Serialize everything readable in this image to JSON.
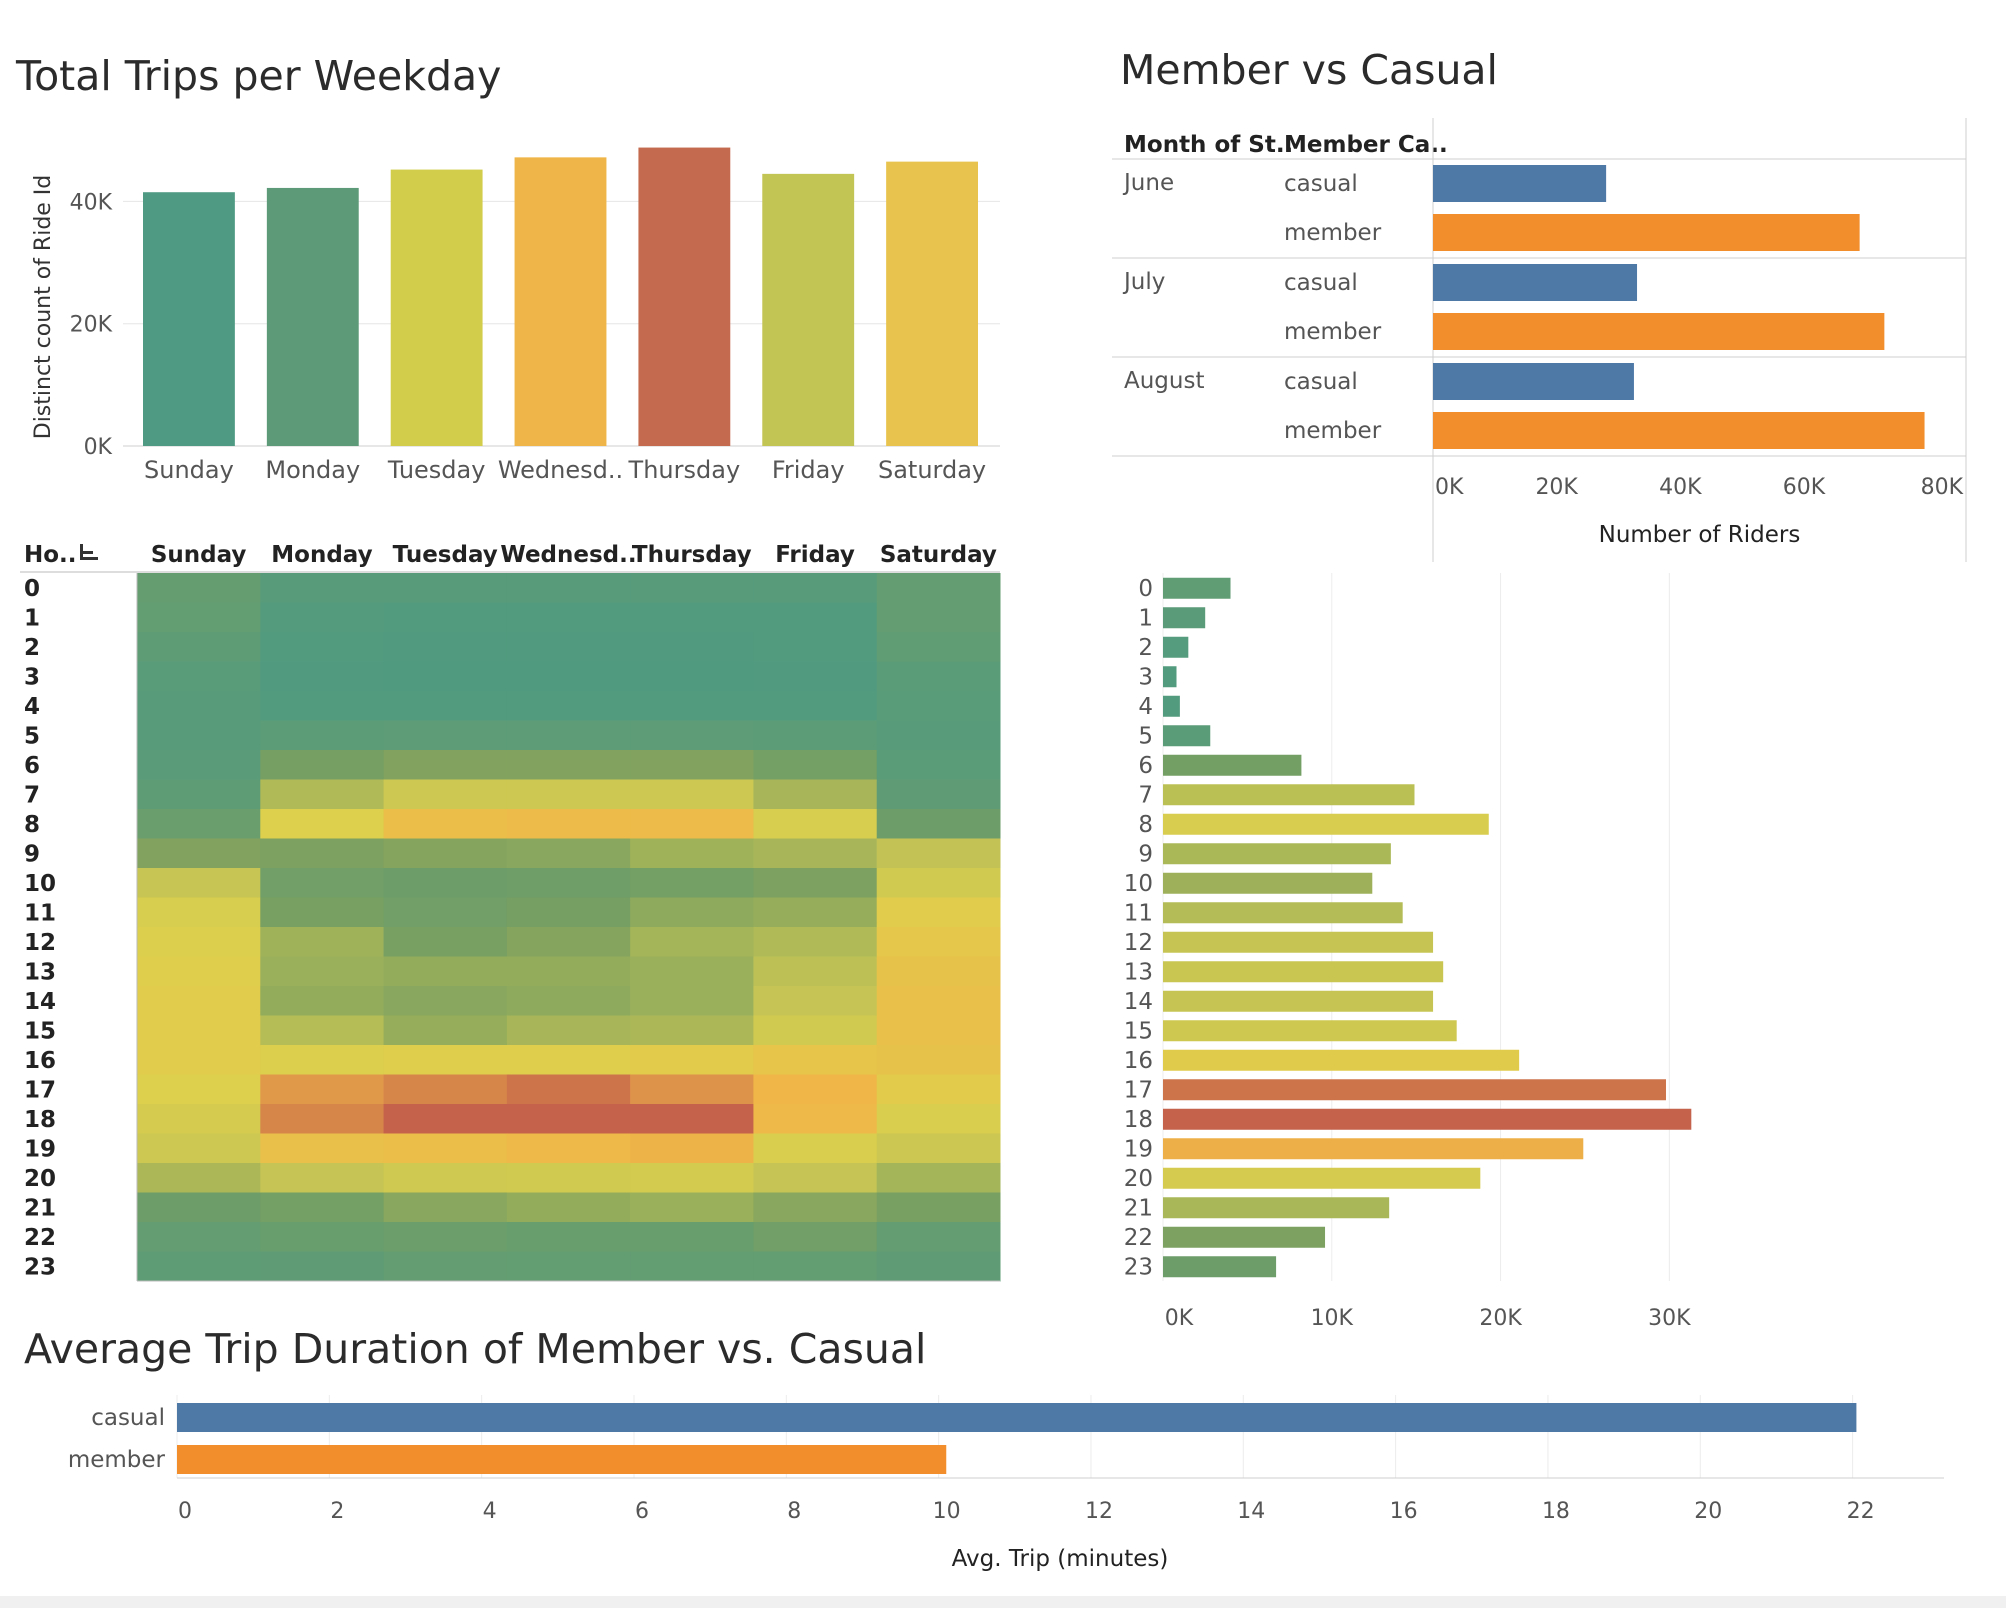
{
  "chart_data": [
    {
      "id": "weekday",
      "type": "bar",
      "title": "Total Trips per Weekday",
      "ylabel": "Distinct count of Ride Id",
      "categories": [
        "Sunday",
        "Monday",
        "Tuesday",
        "Wednesd..",
        "Thursday",
        "Friday",
        "Saturday"
      ],
      "values": [
        41500,
        42200,
        45200,
        47200,
        48800,
        44500,
        46500
      ],
      "colors": [
        "#4e9a82",
        "#5c9a78",
        "#d2cd4a",
        "#f0b548",
        "#c46a4e",
        "#c2c454",
        "#e8c44e"
      ],
      "yticks": [
        0,
        20000,
        40000
      ],
      "ytick_labels": [
        "0K",
        "20K",
        "40K"
      ],
      "ylim": [
        0,
        52000
      ],
      "grid": true
    },
    {
      "id": "member_casual_month",
      "type": "bar",
      "orientation": "horizontal",
      "title": "Member vs Casual",
      "headers": [
        "Month of St..",
        "Member Ca.."
      ],
      "xlabel": "Number of Riders",
      "groups": [
        {
          "month": "June",
          "rows": [
            {
              "type": "casual",
              "value": 28000
            },
            {
              "type": "member",
              "value": 69000
            }
          ]
        },
        {
          "month": "July",
          "rows": [
            {
              "type": "casual",
              "value": 33000
            },
            {
              "type": "member",
              "value": 73000
            }
          ]
        },
        {
          "month": "August",
          "rows": [
            {
              "type": "casual",
              "value": 32500
            },
            {
              "type": "member",
              "value": 79500
            }
          ]
        }
      ],
      "colors": {
        "casual": "#4e79a7",
        "member": "#f28e2b"
      },
      "xticks": [
        0,
        20000,
        40000,
        60000,
        80000
      ],
      "xtick_labels": [
        "0K",
        "20K",
        "40K",
        "60K",
        "80K"
      ],
      "xlim": [
        0,
        82000
      ]
    },
    {
      "id": "heatmap",
      "type": "heatmap",
      "row_header": "Ho..",
      "columns": [
        "Sunday",
        "Monday",
        "Tuesday",
        "Wednesd..",
        "Thursday",
        "Friday",
        "Saturday"
      ],
      "rows": [
        "0",
        "1",
        "2",
        "3",
        "4",
        "5",
        "6",
        "7",
        "8",
        "9",
        "10",
        "11",
        "12",
        "13",
        "14",
        "15",
        "16",
        "17",
        "18",
        "19",
        "20",
        "21",
        "22",
        "23"
      ],
      "values": [
        [
          680,
          300,
          250,
          250,
          250,
          250,
          650
        ],
        [
          600,
          180,
          150,
          150,
          150,
          150,
          620
        ],
        [
          450,
          120,
          100,
          100,
          100,
          110,
          520
        ],
        [
          330,
          80,
          70,
          70,
          70,
          80,
          380
        ],
        [
          280,
          130,
          120,
          120,
          120,
          130,
          320
        ],
        [
          300,
          420,
          430,
          430,
          430,
          420,
          300
        ],
        [
          350,
          1150,
          1350,
          1350,
          1350,
          1100,
          380
        ],
        [
          450,
          1900,
          2350,
          2350,
          2350,
          1800,
          500
        ],
        [
          800,
          2750,
          3150,
          3200,
          3200,
          2600,
          900
        ],
        [
          1350,
          1300,
          1400,
          1450,
          1700,
          1800,
          2100
        ],
        [
          2200,
          1000,
          900,
          950,
          1100,
          1300,
          2450
        ],
        [
          2600,
          1200,
          1000,
          1150,
          1500,
          1600,
          2850
        ],
        [
          2700,
          1700,
          1200,
          1400,
          1750,
          1900,
          2950
        ],
        [
          2800,
          1650,
          1550,
          1550,
          1650,
          2050,
          3050
        ],
        [
          2850,
          1550,
          1450,
          1500,
          1650,
          2150,
          3100
        ],
        [
          2850,
          1950,
          1600,
          1800,
          1850,
          2450,
          3100
        ],
        [
          2850,
          2700,
          2800,
          2800,
          2900,
          3000,
          3050
        ],
        [
          2750,
          3650,
          3850,
          4050,
          3700,
          3300,
          2900
        ],
        [
          2550,
          3850,
          4250,
          4250,
          4250,
          3250,
          2650
        ],
        [
          2350,
          3100,
          3150,
          3250,
          3350,
          2650,
          2300
        ],
        [
          1850,
          2150,
          2400,
          2450,
          2500,
          2150,
          1750
        ],
        [
          900,
          1100,
          1450,
          1550,
          1650,
          1450,
          1200
        ],
        [
          650,
          750,
          850,
          750,
          750,
          1000,
          650
        ],
        [
          450,
          500,
          650,
          600,
          600,
          600,
          500
        ]
      ]
    },
    {
      "id": "hourly",
      "type": "bar",
      "orientation": "horizontal",
      "categories": [
        "0",
        "1",
        "2",
        "3",
        "4",
        "5",
        "6",
        "7",
        "8",
        "9",
        "10",
        "11",
        "12",
        "13",
        "14",
        "15",
        "16",
        "17",
        "18",
        "19",
        "20",
        "21",
        "22",
        "23"
      ],
      "values": [
        4000,
        2500,
        1500,
        800,
        1000,
        2800,
        8200,
        14900,
        19300,
        13500,
        12400,
        14200,
        16000,
        16600,
        16000,
        17400,
        21100,
        29800,
        31300,
        24900,
        18800,
        13400,
        9600,
        6700
      ],
      "xticks": [
        0,
        10000,
        20000,
        30000
      ],
      "xtick_labels": [
        "0K",
        "10K",
        "20K",
        "30K"
      ],
      "xlim": [
        0,
        33000
      ],
      "grid": true
    },
    {
      "id": "avg_duration",
      "type": "bar",
      "orientation": "horizontal",
      "title": "Average Trip Duration of Member vs. Casual",
      "xlabel": "Avg. Trip (minutes)",
      "categories": [
        "casual",
        "member"
      ],
      "values": [
        22.05,
        10.1
      ],
      "colors": [
        "#4e79a7",
        "#f28e2b"
      ],
      "xticks": [
        0,
        2,
        4,
        6,
        8,
        10,
        12,
        14,
        16,
        18,
        20,
        22
      ],
      "xtick_labels": [
        "0",
        "2",
        "4",
        "6",
        "8",
        "10",
        "12",
        "14",
        "16",
        "18",
        "20",
        "22"
      ],
      "xlim": [
        0,
        23.2
      ],
      "grid": true
    }
  ]
}
